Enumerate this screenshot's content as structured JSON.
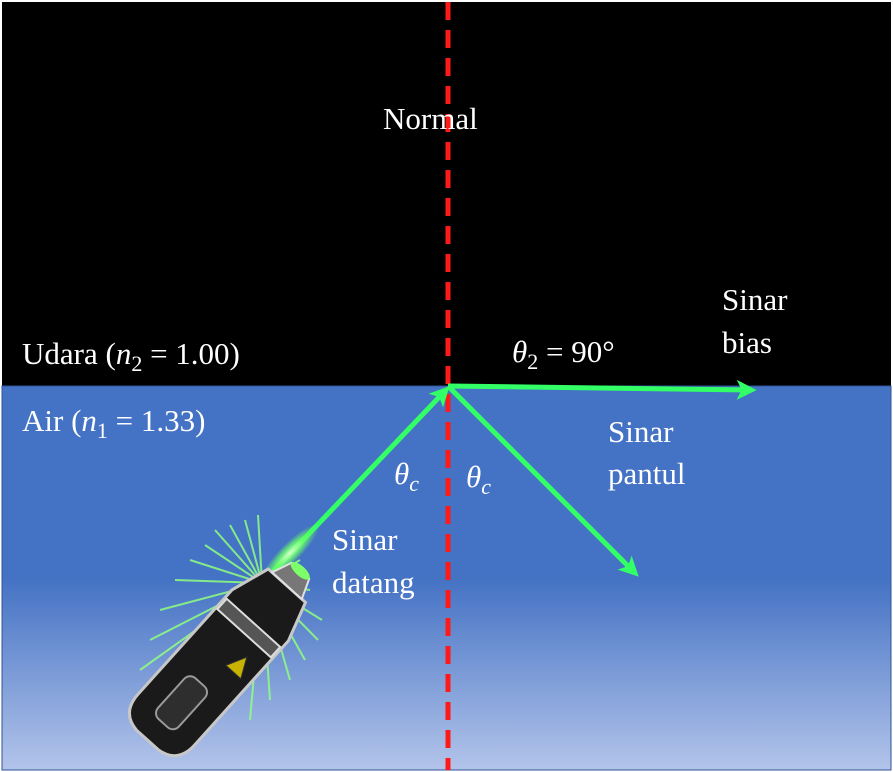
{
  "labels": {
    "normal": "Normal",
    "air_medium_name": "Air (",
    "air_n_symbol": "n",
    "air_n_sub": "1",
    "air_n_value": " = 1.33)",
    "udara_medium_name": "Udara (",
    "udara_n_symbol": "n",
    "udara_n_sub": "2",
    "udara_n_value": " = 1.00)",
    "theta_symbol": "θ",
    "theta_c_sub": "c",
    "theta2_sub": "2",
    "theta2_value": " = 90°",
    "refracted_ray_line1": "Sinar",
    "refracted_ray_line2": "bias",
    "reflected_ray_line1": "Sinar",
    "reflected_ray_line2": "pantul",
    "incident_ray_line1": "Sinar",
    "incident_ray_line2": "datang"
  },
  "colors": {
    "upper_medium": "#000000",
    "water_top": "#4472c4",
    "water_bottom": "#aebfe6",
    "normal_line": "#ff1a1a",
    "ray": "#33ff66",
    "text": "#ffffff"
  },
  "icons": {
    "laser_pointer": "laser-pointer-icon"
  }
}
